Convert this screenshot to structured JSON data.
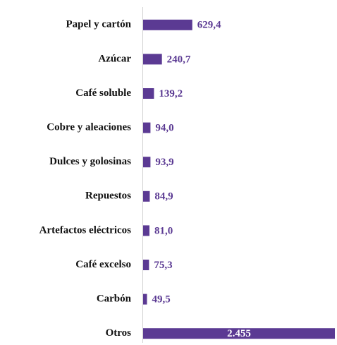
{
  "chart_data": {
    "type": "bar",
    "orientation": "horizontal",
    "color": "#5b3a93",
    "categories": [
      "Papel y cartón",
      "Azúcar",
      "Café soluble",
      "Cobre y aleaciones",
      "Dulces y golosinas",
      "Repuestos",
      "Artefactos eléctricos",
      "Café excelso",
      "Carbón",
      "Otros"
    ],
    "values": [
      629.4,
      240.7,
      139.2,
      94.0,
      93.9,
      84.9,
      81.0,
      75.3,
      49.5,
      2455
    ],
    "value_labels": [
      "629,4",
      "240,7",
      "139,2",
      "94,0",
      "93,9",
      "84,9",
      "81,0",
      "75,3",
      "49,5",
      "2.455"
    ]
  }
}
